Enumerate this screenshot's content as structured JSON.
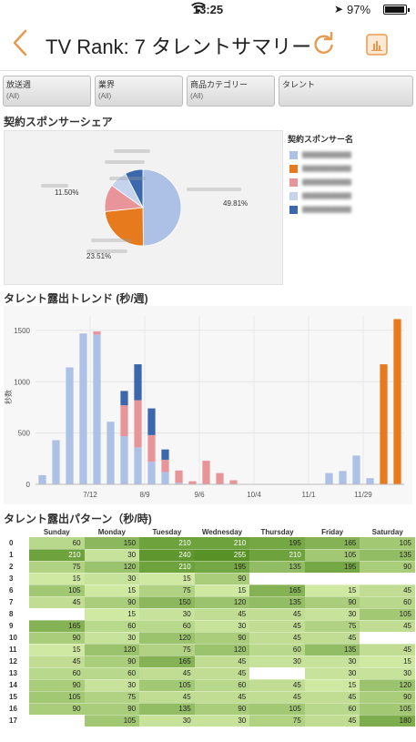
{
  "status_bar": {
    "time": "13:25",
    "battery": "97%"
  },
  "nav": {
    "title": "TV Rank: 7 タレントサマリー"
  },
  "filters": [
    {
      "label": "放送週",
      "value": "(All)"
    },
    {
      "label": "業界",
      "value": "(All)"
    },
    {
      "label": "商品カテゴリー",
      "value": "(All)"
    },
    {
      "label": "タレント",
      "value": ""
    }
  ],
  "sections": {
    "share_title": "契約スポンサーシェア",
    "trend_title": "タレント露出トレンド (秒/週)",
    "pattern_title": "タレント露出パターン（秒/時)"
  },
  "legend": {
    "title": "契約スポンサー名"
  },
  "colors": {
    "blue_light": "#adc1e6",
    "orange": "#e77a1c",
    "pink": "#e8959a",
    "blue_pale": "#c5d3ed",
    "blue_dark": "#3a67ad",
    "accent": "#e79a4e"
  },
  "chart_data": [
    {
      "type": "pie",
      "title": "契約スポンサーシェア",
      "legend_title": "契約スポンサー名",
      "slices": [
        {
          "value": 49.81,
          "label": "49.81%",
          "color": "#adc1e6"
        },
        {
          "value": 23.51,
          "label": "23.51%",
          "color": "#e77a1c"
        },
        {
          "value": 11.5,
          "label": "11.50%",
          "color": "#e8959a"
        },
        {
          "value": 7.59,
          "label": "",
          "color": "#c5d3ed"
        },
        {
          "value": 7.59,
          "label": "",
          "color": "#3a67ad"
        }
      ]
    },
    {
      "type": "bar",
      "title": "タレント露出トレンド (秒/週)",
      "ylabel": "秒数",
      "ylim": [
        0,
        1650
      ],
      "yticks": [
        0,
        500,
        1000,
        1500
      ],
      "xtick_labels": [
        "7/12",
        "8/9",
        "9/6",
        "10/4",
        "11/1",
        "11/29"
      ],
      "xtick_positions": [
        4,
        8,
        12,
        16,
        20,
        24
      ],
      "stack_order": [
        "blue_light",
        "pink",
        "blue_dark",
        "orange"
      ],
      "series": [
        {
          "name": "blue_light",
          "color": "#adc1e6",
          "values": [
            90,
            430,
            1140,
            1470,
            1460,
            610,
            470,
            360,
            220,
            120,
            15,
            0,
            0,
            0,
            0,
            0,
            0,
            0,
            0,
            0,
            0,
            110,
            130,
            280,
            60,
            0,
            0
          ]
        },
        {
          "name": "pink",
          "color": "#e8959a",
          "values": [
            0,
            0,
            0,
            0,
            30,
            0,
            300,
            460,
            260,
            120,
            120,
            30,
            230,
            110,
            40,
            0,
            0,
            0,
            0,
            0,
            0,
            0,
            0,
            0,
            0,
            0,
            0
          ]
        },
        {
          "name": "blue_dark",
          "color": "#3a67ad",
          "values": [
            0,
            0,
            0,
            0,
            0,
            0,
            140,
            350,
            260,
            100,
            0,
            0,
            0,
            0,
            0,
            0,
            0,
            0,
            0,
            0,
            0,
            0,
            0,
            0,
            0,
            0,
            0
          ]
        },
        {
          "name": "orange",
          "color": "#e77a1c",
          "values": [
            0,
            0,
            0,
            0,
            0,
            0,
            0,
            0,
            0,
            0,
            0,
            0,
            0,
            0,
            0,
            0,
            0,
            0,
            0,
            0,
            0,
            0,
            0,
            0,
            0,
            1170,
            1610
          ]
        }
      ]
    },
    {
      "type": "heatmap",
      "title": "タレント露出パターン（秒/時)",
      "columns": [
        "Sunday",
        "Monday",
        "Tuesday",
        "Wednesday",
        "Thursday",
        "Friday",
        "Saturday"
      ],
      "rows": [
        {
          "hour": "0",
          "values": [
            60,
            150,
            210,
            210,
            195,
            165,
            105
          ]
        },
        {
          "hour": "1",
          "values": [
            210,
            30,
            240,
            255,
            210,
            105,
            135
          ]
        },
        {
          "hour": "2",
          "values": [
            75,
            120,
            210,
            195,
            135,
            195,
            90
          ]
        },
        {
          "hour": "3",
          "values": [
            15,
            30,
            15,
            90,
            null,
            null,
            null
          ]
        },
        {
          "hour": "6",
          "values": [
            105,
            15,
            75,
            15,
            165,
            15,
            45
          ]
        },
        {
          "hour": "7",
          "values": [
            45,
            90,
            150,
            120,
            135,
            90,
            60
          ]
        },
        {
          "hour": "8",
          "values": [
            null,
            15,
            30,
            45,
            45,
            30,
            105
          ]
        },
        {
          "hour": "9",
          "values": [
            165,
            60,
            60,
            30,
            45,
            75,
            45
          ]
        },
        {
          "hour": "10",
          "values": [
            90,
            30,
            120,
            90,
            45,
            45,
            null
          ]
        },
        {
          "hour": "11",
          "values": [
            15,
            120,
            75,
            120,
            60,
            135,
            45
          ]
        },
        {
          "hour": "12",
          "values": [
            45,
            90,
            165,
            45,
            30,
            30,
            15
          ]
        },
        {
          "hour": "13",
          "values": [
            60,
            60,
            45,
            45,
            null,
            30,
            30
          ]
        },
        {
          "hour": "14",
          "values": [
            90,
            30,
            105,
            60,
            45,
            15,
            120
          ]
        },
        {
          "hour": "15",
          "values": [
            105,
            75,
            45,
            45,
            45,
            45,
            90
          ]
        },
        {
          "hour": "16",
          "values": [
            90,
            90,
            135,
            90,
            105,
            60,
            105
          ]
        },
        {
          "hour": "17",
          "values": [
            null,
            105,
            30,
            30,
            75,
            45,
            180
          ]
        }
      ]
    }
  ]
}
